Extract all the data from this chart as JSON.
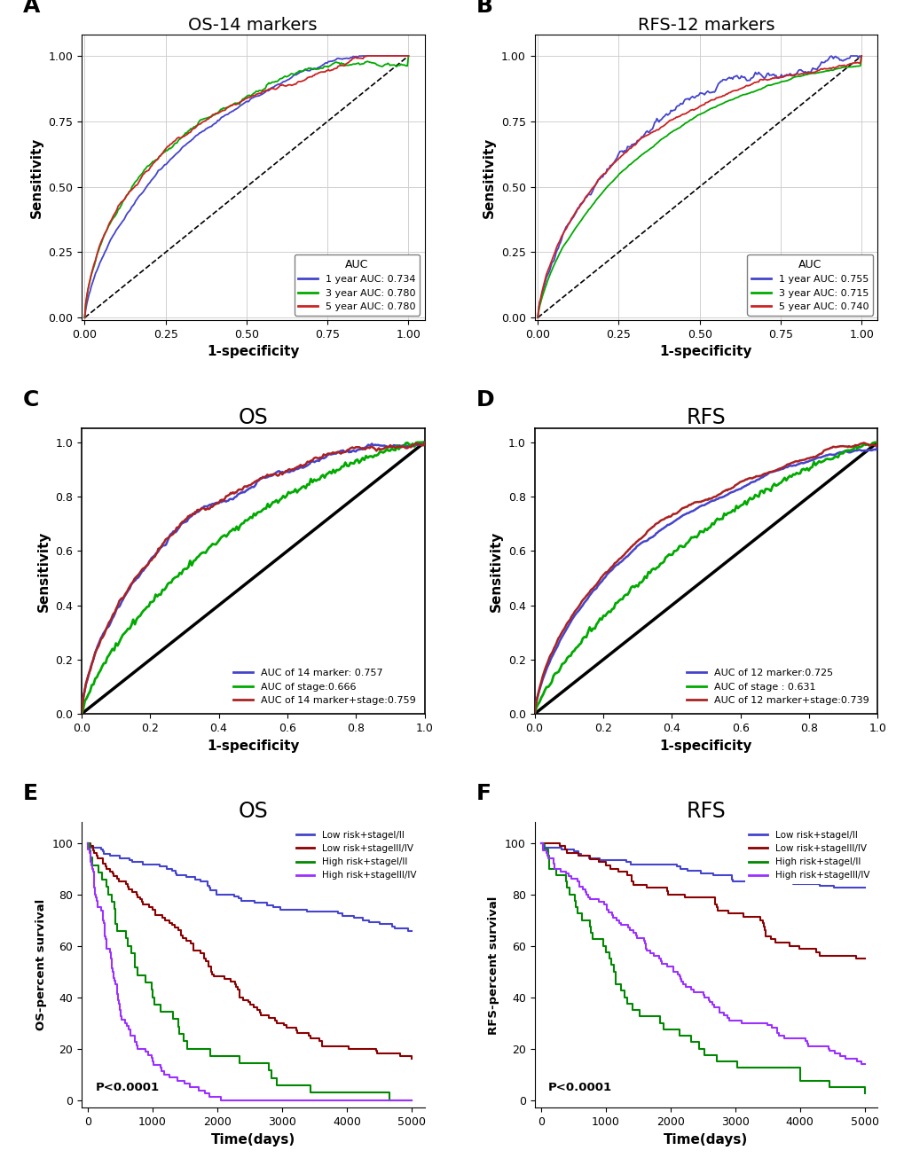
{
  "panel_A_title": "OS-14 markers",
  "panel_B_title": "RFS-12 markers",
  "panel_C_title": "OS",
  "panel_D_title": "RFS",
  "panel_E_title": "OS",
  "panel_F_title": "RFS",
  "roc_A_legend": [
    "1 year AUC: 0.734",
    "3 year AUC: 0.780",
    "5 year AUC: 0.780"
  ],
  "roc_B_legend": [
    "1 year AUC: 0.755",
    "3 year AUC: 0.715",
    "5 year AUC: 0.740"
  ],
  "roc_C_legend": [
    "AUC of 14 marker: 0.757",
    "AUC of stage:0.666",
    "AUC of 14 marker+stage:0.759"
  ],
  "roc_D_legend": [
    "AUC of 12 marker:0.725",
    "AUC of stage : 0.631",
    "AUC of 12 marker+stage:0.739"
  ],
  "roc_colors_AB": [
    "#4444cc",
    "#00aa00",
    "#cc2222"
  ],
  "roc_colors_CD": [
    "#4444cc",
    "#00aa00",
    "#aa2222"
  ],
  "surv_E_legend": [
    "Low risk+stageI/II",
    "Low risk+stageIII/IV",
    "High risk+stageI/II",
    "High risk+stageIII/IV"
  ],
  "surv_F_legend": [
    "Low risk+stageI/II",
    "Low risk+stageIII/IV",
    "High risk+stageI/II",
    "High risk+stageIII/IV"
  ],
  "surv_colors_E": [
    "#4444cc",
    "#8B0000",
    "#008800",
    "#9B30FF"
  ],
  "surv_colors_F": [
    "#4444cc",
    "#8B0000",
    "#008800",
    "#9B30FF"
  ],
  "pvalue": "P<0.0001",
  "xlabel_roc": "1-specificity",
  "ylabel_roc": "Sensitivity",
  "xlabel_surv": "Time(days)",
  "ylabel_E": "OS-percent survival",
  "ylabel_F": "RFS-percent survival",
  "background_color": "#ffffff",
  "grid_color": "#d0d0d0"
}
